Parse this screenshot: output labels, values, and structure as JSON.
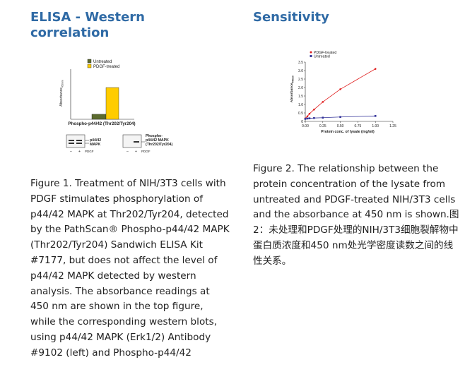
{
  "left": {
    "heading": "ELISA - Western correlation",
    "caption": "Figure 1. Treatment of NIH/3T3 cells with PDGF stimulates phosphorylation of p44/42 MAPK at Thr202/Tyr204, detected by the PathScan® Phospho-p44/42 MAPK (Thr202/Tyr204) Sandwich ELISA Kit #7177, but does not affect the level of p44/42 MAPK detected by western analysis. The absorbance readings at 450 nm are shown in the top figure, while the corresponding western blots, using p44/42 MAPK (Erk1/2) Antibody #9102 (left) and Phospho-p44/42"
  },
  "right": {
    "heading": "Sensitivity",
    "caption": "Figure 2. The relationship between the protein concentration of the lysate from untreated and PDGF-treated NIH/3T3 cells and the absorbance at 450 nm is shown.图2：未处理和PDGF处理的NIH/3T3细胞裂解物中蛋白质浓度和450 nm处光学密度读数之间的线性关系。"
  },
  "blots": {
    "left_label": "p44/42 MAPK",
    "right_label": "Phospho-p44/42 MAPK (Thr202/Tyr204)",
    "minus": "–",
    "plus": "+",
    "pdgf": "PDGF"
  },
  "colors": {
    "heading": "#2f6aa5",
    "untreated": "#5c6b2e",
    "pdgf": "#ffcc00",
    "red_series": "#e02020",
    "blue_series": "#333399"
  },
  "chart_data": [
    {
      "type": "bar",
      "ylabel": "Absorbance450nm",
      "xlabel": "Phospho-p44/42 (Thr202/Tyr204)",
      "ylim": [
        0,
        3.0
      ],
      "grid": false,
      "legend": "top-left",
      "series": [
        {
          "name": "Untreated",
          "values": [
            0.3
          ]
        },
        {
          "name": "PDGF-treated",
          "values": [
            1.9
          ]
        }
      ]
    },
    {
      "type": "line",
      "xlabel": "Protein conc. of lysate (mg/ml)",
      "ylabel": "Absorbance450nm",
      "xlim": [
        0,
        1.25
      ],
      "ylim": [
        0,
        3.5
      ],
      "xticks": [
        "0.00",
        "0.25",
        "0.50",
        "0.75",
        "1.00",
        "1.25"
      ],
      "yticks": [
        "0",
        "0.5",
        "1.0",
        "1.5",
        "2.0",
        "2.5",
        "3.0",
        "3.5"
      ],
      "legend": "top-left",
      "grid": false,
      "series": [
        {
          "name": "PDGF-treated",
          "x": [
            0.0,
            0.03,
            0.06,
            0.125,
            0.25,
            0.5,
            1.0
          ],
          "y": [
            0.18,
            0.3,
            0.45,
            0.7,
            1.15,
            1.9,
            3.1
          ]
        },
        {
          "name": "Untreated",
          "x": [
            0.0,
            0.03,
            0.06,
            0.125,
            0.25,
            0.5,
            1.0
          ],
          "y": [
            0.15,
            0.17,
            0.18,
            0.2,
            0.22,
            0.26,
            0.32
          ]
        }
      ]
    }
  ]
}
